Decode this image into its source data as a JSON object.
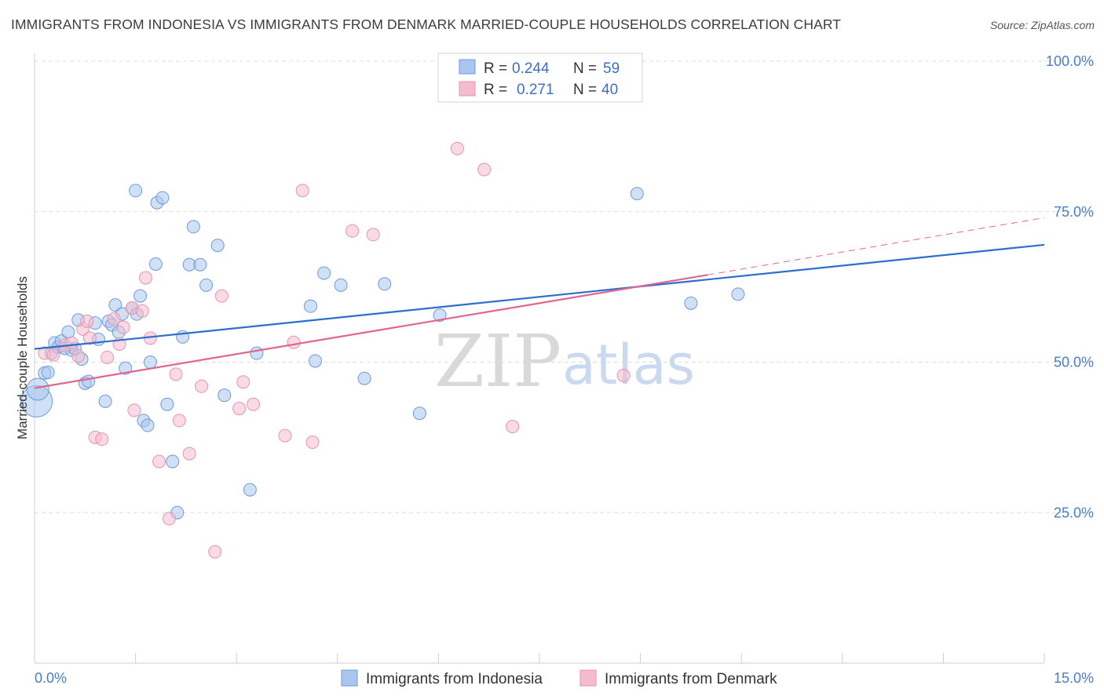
{
  "title": "IMMIGRANTS FROM INDONESIA VS IMMIGRANTS FROM DENMARK MARRIED-COUPLE HOUSEHOLDS CORRELATION CHART",
  "source": "Source: ZipAtlas.com",
  "watermark": {
    "zip": "ZIP",
    "atlas": "atlas"
  },
  "colors": {
    "indonesia_fill": "#aac6ee",
    "indonesia_stroke": "#6f9ad8",
    "indonesia_line": "#2f6ecb",
    "denmark_fill": "#f5bccd",
    "denmark_stroke": "#e993ad",
    "denmark_line": "#e06690",
    "axis_text": "#4a7cc9",
    "grid": "#dddddd"
  },
  "legend": {
    "rows": [
      {
        "r_label": "R =",
        "r_value": "0.244",
        "n_label": "N =",
        "n_value": "59"
      },
      {
        "r_label": "R =",
        "r_value": "0.271",
        "n_label": "N =",
        "n_value": "40"
      }
    ]
  },
  "bottom_legend": [
    "Immigrants from Indonesia",
    "Immigrants from Denmark"
  ],
  "chart_data": {
    "type": "scatter",
    "title": "IMMIGRANTS FROM INDONESIA VS IMMIGRANTS FROM DENMARK MARRIED-COUPLE HOUSEHOLDS CORRELATION CHART",
    "xlabel": "",
    "ylabel": "Married-couple Households",
    "xlim": [
      0,
      15
    ],
    "ylim": [
      0,
      105
    ],
    "x_tick_labels": [
      "0.0%",
      "15.0%"
    ],
    "y_tick_values": [
      25,
      50,
      75,
      100
    ],
    "y_tick_labels": [
      "25.0%",
      "50.0%",
      "75.0%",
      "100.0%"
    ],
    "grid": true,
    "legend_position": "top-center",
    "series": [
      {
        "name": "Immigrants from Indonesia",
        "R": 0.244,
        "N": 59,
        "trend": {
          "x0": 0,
          "y0": 52.2,
          "x1": 15,
          "y1": 69.5
        },
        "points": [
          [
            0.03,
            43.5,
            4
          ],
          [
            0.05,
            45.5,
            2
          ],
          [
            0.15,
            48.2,
            1
          ],
          [
            0.2,
            48.3,
            1
          ],
          [
            0.25,
            51.5,
            1
          ],
          [
            0.3,
            53.2,
            1
          ],
          [
            0.35,
            52.5,
            1
          ],
          [
            0.4,
            53.5,
            1
          ],
          [
            0.45,
            52.3,
            1
          ],
          [
            0.5,
            55.0,
            1
          ],
          [
            0.55,
            52.0,
            1
          ],
          [
            0.6,
            52.3,
            1
          ],
          [
            0.65,
            57.0,
            1
          ],
          [
            0.7,
            50.5,
            1
          ],
          [
            0.75,
            46.5,
            1
          ],
          [
            0.8,
            46.8,
            1
          ],
          [
            0.9,
            56.5,
            1
          ],
          [
            0.95,
            53.8,
            1
          ],
          [
            1.05,
            43.5,
            1
          ],
          [
            1.1,
            56.8,
            1
          ],
          [
            1.15,
            56.2,
            1
          ],
          [
            1.2,
            59.5,
            1
          ],
          [
            1.25,
            55.0,
            1
          ],
          [
            1.3,
            58.0,
            1
          ],
          [
            1.35,
            49.0,
            1
          ],
          [
            1.45,
            59.0,
            1
          ],
          [
            1.5,
            78.5,
            1
          ],
          [
            1.52,
            58.0,
            1
          ],
          [
            1.57,
            61.0,
            1
          ],
          [
            1.62,
            40.3,
            1
          ],
          [
            1.68,
            39.5,
            1
          ],
          [
            1.72,
            50.0,
            1
          ],
          [
            1.8,
            66.3,
            1
          ],
          [
            1.82,
            76.5,
            1
          ],
          [
            1.9,
            77.3,
            1
          ],
          [
            1.97,
            43.0,
            1
          ],
          [
            2.05,
            33.5,
            1
          ],
          [
            2.12,
            25.0,
            1
          ],
          [
            2.2,
            54.2,
            1
          ],
          [
            2.3,
            66.2,
            1
          ],
          [
            2.36,
            72.5,
            1
          ],
          [
            2.46,
            66.2,
            1
          ],
          [
            2.55,
            62.8,
            1
          ],
          [
            2.72,
            69.4,
            1
          ],
          [
            2.82,
            44.5,
            1
          ],
          [
            3.2,
            28.8,
            1
          ],
          [
            3.3,
            51.5,
            1
          ],
          [
            4.1,
            59.3,
            1
          ],
          [
            4.17,
            50.2,
            1
          ],
          [
            4.3,
            64.8,
            1
          ],
          [
            4.55,
            62.8,
            1
          ],
          [
            4.9,
            47.3,
            1
          ],
          [
            5.2,
            63.0,
            1
          ],
          [
            5.72,
            41.5,
            1
          ],
          [
            6.02,
            57.8,
            1
          ],
          [
            8.95,
            78.0,
            1
          ],
          [
            9.75,
            59.8,
            1
          ],
          [
            10.45,
            61.3,
            1
          ]
        ]
      },
      {
        "name": "Immigrants from Denmark",
        "R": 0.271,
        "N": 40,
        "trend": {
          "x0": 0,
          "y0": 45.7,
          "x1": 10.0,
          "y1": 64.5
        },
        "trend_dashed": {
          "x0": 10.0,
          "y0": 64.5,
          "x1": 15,
          "y1": 74.0
        },
        "points": [
          [
            0.15,
            51.5,
            1
          ],
          [
            0.28,
            51.2,
            1
          ],
          [
            0.45,
            52.8,
            1
          ],
          [
            0.55,
            53.2,
            1
          ],
          [
            0.65,
            51.0,
            1
          ],
          [
            0.72,
            55.5,
            1
          ],
          [
            0.78,
            56.8,
            1
          ],
          [
            0.82,
            54.0,
            1
          ],
          [
            0.9,
            37.5,
            1
          ],
          [
            1.0,
            37.2,
            1
          ],
          [
            1.08,
            50.8,
            1
          ],
          [
            1.18,
            57.2,
            1
          ],
          [
            1.26,
            53.0,
            1
          ],
          [
            1.32,
            55.8,
            1
          ],
          [
            1.45,
            59.0,
            1
          ],
          [
            1.48,
            42.0,
            1
          ],
          [
            1.6,
            58.5,
            1
          ],
          [
            1.65,
            64.0,
            1
          ],
          [
            1.72,
            54.0,
            1
          ],
          [
            1.85,
            33.5,
            1
          ],
          [
            2.0,
            24.0,
            1
          ],
          [
            2.1,
            48.0,
            1
          ],
          [
            2.15,
            40.3,
            1
          ],
          [
            2.3,
            34.8,
            1
          ],
          [
            2.48,
            46.0,
            1
          ],
          [
            2.68,
            18.5,
            1
          ],
          [
            2.78,
            61.0,
            1
          ],
          [
            3.04,
            42.3,
            1
          ],
          [
            3.1,
            46.7,
            1
          ],
          [
            3.25,
            43.0,
            1
          ],
          [
            3.72,
            37.8,
            1
          ],
          [
            3.85,
            53.3,
            1
          ],
          [
            3.98,
            78.5,
            1
          ],
          [
            4.13,
            36.7,
            1
          ],
          [
            4.72,
            71.8,
            1
          ],
          [
            5.03,
            71.2,
            1
          ],
          [
            6.28,
            85.5,
            1
          ],
          [
            6.68,
            82.0,
            1
          ],
          [
            7.1,
            39.3,
            1
          ],
          [
            8.75,
            47.8,
            1
          ]
        ]
      }
    ]
  }
}
